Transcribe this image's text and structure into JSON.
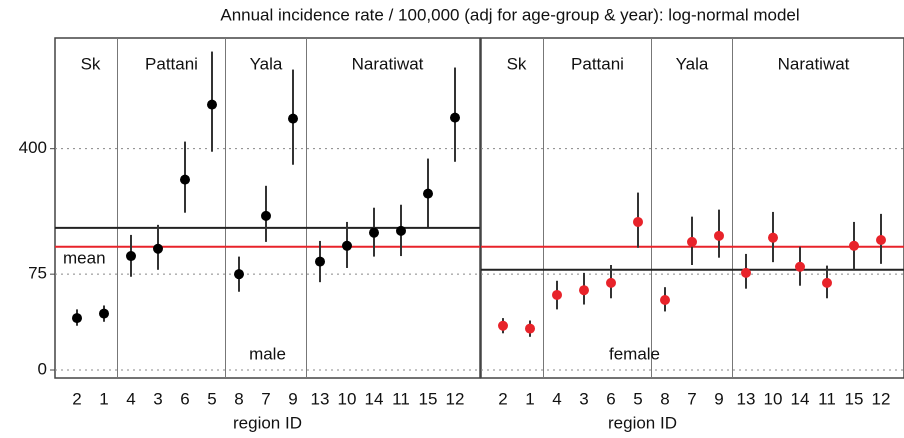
{
  "title": "Annual incidence rate / 100,000 (adj for age-group & year): log-normal model",
  "chart_data": [
    {
      "type": "errorbar",
      "panel_label": "male",
      "xlabel": "region ID",
      "scale": "sqrt",
      "ylim": [
        0,
        900
      ],
      "yticks": [
        0,
        75,
        400
      ],
      "ytick_labels": true,
      "grid": true,
      "groups": [
        {
          "name": "Sk",
          "categories": [
            "2",
            "1"
          ]
        },
        {
          "name": "Pattani",
          "categories": [
            "4",
            "3",
            "6",
            "5"
          ]
        },
        {
          "name": "Yala",
          "categories": [
            "8",
            "7",
            "9"
          ]
        },
        {
          "name": "Naratiwat",
          "categories": [
            "13",
            "10",
            "14",
            "11",
            "15",
            "12"
          ]
        }
      ],
      "series": [
        {
          "color": "#000000",
          "values": [
            22,
            26,
            106,
            120,
            296,
            575,
            75,
            194,
            516,
            96,
            126,
            154,
            158,
            254,
            520
          ],
          "lower": [
            16,
            19,
            71,
            82,
            202,
            389,
            50,
            134,
            344,
            63,
            85,
            105,
            106,
            167,
            354
          ],
          "upper": [
            30,
            34,
            149,
            172,
            426,
            828,
            105,
            277,
            737,
            136,
            179,
            215,
            223,
            365,
            747
          ]
        }
      ],
      "reference_lines": [
        {
          "value": 124,
          "color": "#e8232a",
          "label": "mean"
        },
        {
          "value": 165,
          "color": "#222222"
        }
      ]
    },
    {
      "type": "errorbar",
      "panel_label": "female",
      "xlabel": "region ID",
      "scale": "sqrt",
      "ylim": [
        0,
        900
      ],
      "yticks": [
        0,
        75,
        400
      ],
      "ytick_labels": false,
      "grid": true,
      "groups": [
        {
          "name": "Sk",
          "categories": [
            "2",
            "1"
          ]
        },
        {
          "name": "Pattani",
          "categories": [
            "4",
            "3",
            "6",
            "5"
          ]
        },
        {
          "name": "Yala",
          "categories": [
            "8",
            "7",
            "9"
          ]
        },
        {
          "name": "Naratiwat",
          "categories": [
            "13",
            "10",
            "14",
            "11",
            "15",
            "12"
          ]
        }
      ],
      "series": [
        {
          "color": "#e8232a",
          "values": [
            16,
            14,
            46,
            52,
            62,
            179,
            40,
            134,
            147,
            77,
            143,
            87,
            62,
            126,
            138
          ],
          "lower": [
            11,
            9,
            30,
            35,
            42,
            122,
            28,
            90,
            103,
            54,
            95,
            58,
            42,
            82,
            92
          ],
          "upper": [
            22,
            20,
            65,
            77,
            90,
            257,
            56,
            192,
            210,
            110,
            204,
            124,
            89,
            179,
            199
          ]
        }
      ],
      "reference_lines": [
        {
          "value": 124,
          "color": "#e8232a"
        },
        {
          "value": 82,
          "color": "#222222"
        }
      ]
    }
  ]
}
